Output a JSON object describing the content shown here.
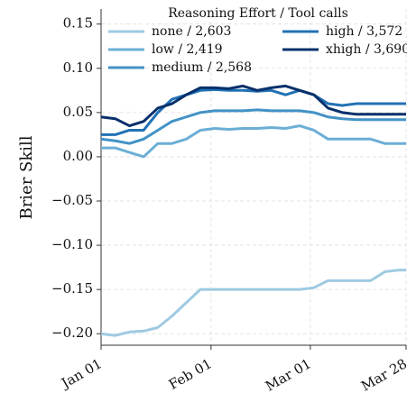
{
  "chart_data": {
    "type": "line",
    "ylabel": "Brier Skill",
    "legend_title": "Reasoning Effort / Tool calls",
    "legend": "upper center",
    "grid": true,
    "x": [
      0,
      4,
      8,
      12,
      16,
      20,
      24,
      28,
      32,
      36,
      40,
      44,
      48,
      52,
      56,
      60,
      64,
      68,
      72,
      76,
      80,
      84,
      86
    ],
    "xlim": [
      0,
      86
    ],
    "xticks": [
      {
        "value": 0,
        "label": "Jan 01"
      },
      {
        "value": 31,
        "label": "Feb 01"
      },
      {
        "value": 59,
        "label": "Mar 01"
      },
      {
        "value": 86,
        "label": "Mar 28"
      }
    ],
    "ylim": [
      -0.213,
      0.167
    ],
    "yticks": [
      0.15,
      {
        "value": 0.1,
        "label": "0.10"
      },
      0.05,
      {
        "value": 0,
        "label": "0.00"
      },
      {
        "value": -0.05,
        "label": "−0.05"
      },
      {
        "value": -0.1,
        "label": "−0.10"
      },
      {
        "value": -0.15,
        "label": "−0.15"
      },
      {
        "value": -0.2,
        "label": "−0.20"
      }
    ],
    "series": [
      {
        "name": "none / 2,603",
        "color": "#9ecae1",
        "values": [
          -0.2,
          -0.202,
          -0.198,
          -0.197,
          -0.193,
          -0.18,
          -0.165,
          -0.15,
          -0.15,
          -0.15,
          -0.15,
          -0.15,
          -0.15,
          -0.15,
          -0.15,
          -0.148,
          -0.14,
          -0.14,
          -0.14,
          -0.14,
          -0.13,
          -0.128,
          -0.128
        ]
      },
      {
        "name": "low / 2,419",
        "color": "#6baed6",
        "values": [
          0.01,
          0.01,
          0.005,
          0.0,
          0.015,
          0.015,
          0.02,
          0.03,
          0.032,
          0.031,
          0.032,
          0.032,
          0.033,
          0.032,
          0.035,
          0.03,
          0.02,
          0.02,
          0.02,
          0.02,
          0.015,
          0.015,
          0.015
        ]
      },
      {
        "name": "medium / 2,568",
        "color": "#4292c6",
        "values": [
          0.02,
          0.018,
          0.015,
          0.02,
          0.03,
          0.04,
          0.045,
          0.05,
          0.052,
          0.052,
          0.052,
          0.053,
          0.052,
          0.052,
          0.052,
          0.05,
          0.045,
          0.043,
          0.042,
          0.042,
          0.042,
          0.042,
          0.042
        ]
      },
      {
        "name": "high / 3,572",
        "color": "#2171b5",
        "values": [
          0.025,
          0.025,
          0.03,
          0.03,
          0.05,
          0.065,
          0.07,
          0.075,
          0.076,
          0.075,
          0.075,
          0.074,
          0.075,
          0.07,
          0.075,
          0.07,
          0.06,
          0.058,
          0.06,
          0.06,
          0.06,
          0.06,
          0.06
        ]
      },
      {
        "name": "xhigh / 3,690",
        "color": "#08306b",
        "values": [
          0.045,
          0.043,
          0.035,
          0.04,
          0.055,
          0.06,
          0.07,
          0.078,
          0.078,
          0.077,
          0.08,
          0.075,
          0.078,
          0.08,
          0.075,
          0.07,
          0.055,
          0.05,
          0.048,
          0.048,
          0.048,
          0.048,
          0.048
        ]
      }
    ]
  }
}
